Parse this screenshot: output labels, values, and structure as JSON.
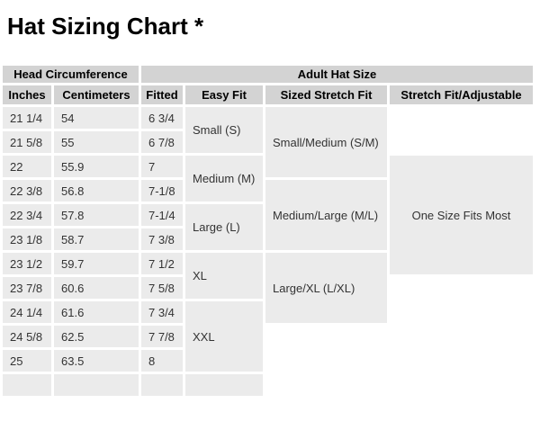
{
  "page": {
    "title": "Hat Sizing Chart *"
  },
  "colors": {
    "header_bg": "#d3d3d3",
    "cell_bg": "#ebebeb",
    "page_bg": "#ffffff",
    "header_text": "#000000",
    "cell_text": "#333333"
  },
  "table": {
    "group_headers": {
      "head_circumference": "Head Circumference",
      "adult_hat_size": "Adult Hat Size"
    },
    "column_headers": {
      "inches": "Inches",
      "centimeters": "Centimeters",
      "fitted": "Fitted",
      "easy_fit": "Easy Fit",
      "sized_stretch_fit": "Sized Stretch Fit",
      "stretch_fit_adjustable": "Stretch Fit/Adjustable"
    },
    "rows": [
      {
        "inches": "21 1/4",
        "centimeters": "54",
        "fitted": "6 3/4"
      },
      {
        "inches": "21 5/8",
        "centimeters": "55",
        "fitted": "6 7/8"
      },
      {
        "inches": "22",
        "centimeters": "55.9",
        "fitted": "7"
      },
      {
        "inches": "22 3/8",
        "centimeters": "56.8",
        "fitted": "7-1/8"
      },
      {
        "inches": "22 3/4",
        "centimeters": "57.8",
        "fitted": "7-1/4"
      },
      {
        "inches": "23 1/8",
        "centimeters": "58.7",
        "fitted": "7 3/8"
      },
      {
        "inches": "23 1/2",
        "centimeters": "59.7",
        "fitted": "7 1/2"
      },
      {
        "inches": "23 7/8",
        "centimeters": "60.6",
        "fitted": "7 5/8"
      },
      {
        "inches": "24 1/4",
        "centimeters": "61.6",
        "fitted": "7 3/4"
      },
      {
        "inches": "24 5/8",
        "centimeters": "62.5",
        "fitted": "7 7/8"
      },
      {
        "inches": "25",
        "centimeters": "63.5",
        "fitted": "8"
      },
      {
        "inches": "",
        "centimeters": "",
        "fitted": ""
      }
    ],
    "easy_fit_groups": [
      {
        "label": "Small (S)"
      },
      {
        "label": "Medium (M)"
      },
      {
        "label": "Large (L)"
      },
      {
        "label": "XL"
      },
      {
        "label": "XXL"
      }
    ],
    "sized_stretch_groups": [
      {
        "label": "Small/Medium (S/M)"
      },
      {
        "label": "Medium/Large (M/L)"
      },
      {
        "label": "Large/XL (L/XL)"
      }
    ],
    "stretch_fit_value": "One Size Fits Most"
  }
}
